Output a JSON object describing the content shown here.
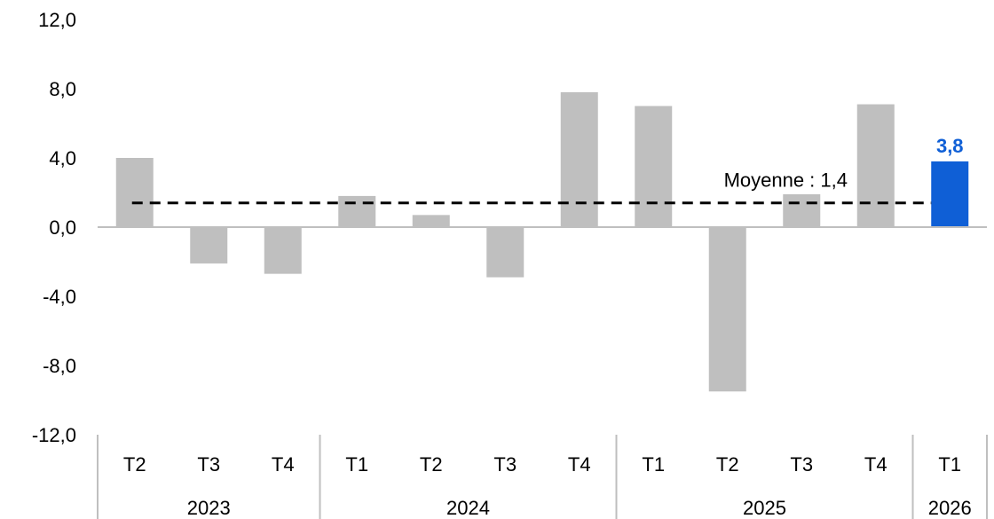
{
  "chart_data": {
    "type": "bar",
    "title": "",
    "xlabel": "",
    "ylabel": "",
    "ylim": [
      -12,
      12
    ],
    "yticks": [
      {
        "value": 12,
        "label": "12,0"
      },
      {
        "value": 8,
        "label": "8,0"
      },
      {
        "value": 4,
        "label": "4,0"
      },
      {
        "value": 0,
        "label": "0,0"
      },
      {
        "value": -4,
        "label": "-4,0"
      },
      {
        "value": -8,
        "label": "-8,0"
      },
      {
        "value": -12,
        "label": "-12,0"
      }
    ],
    "categories": [
      "T2",
      "T3",
      "T4",
      "T1",
      "T2",
      "T3",
      "T4",
      "T1",
      "T2",
      "T3",
      "T4",
      "T1"
    ],
    "years": [
      {
        "label": "2023",
        "start": 0,
        "count": 3
      },
      {
        "label": "2024",
        "start": 3,
        "count": 4
      },
      {
        "label": "2025",
        "start": 7,
        "count": 4
      },
      {
        "label": "2026",
        "start": 11,
        "count": 1
      }
    ],
    "values": [
      4.0,
      -2.1,
      -2.7,
      1.8,
      0.7,
      -2.9,
      7.8,
      7.0,
      -9.5,
      1.9,
      7.1,
      3.8
    ],
    "highlight_index": 11,
    "highlight_label": "3,8",
    "average": {
      "value": 1.4,
      "label": "Moyenne : 1,4"
    },
    "colors": {
      "bar": "#bfbfbf",
      "highlight": "#0f5fd6",
      "average_line": "#000000",
      "axis": "#bfbfbf"
    },
    "grid": false,
    "legend": "none"
  }
}
